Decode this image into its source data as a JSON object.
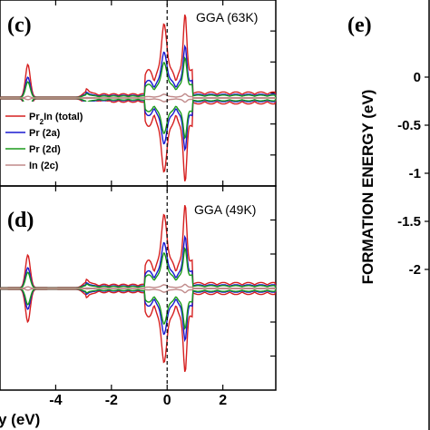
{
  "chart_data": [
    {
      "type": "line",
      "panel_label": "(c)",
      "annotation": "GGA (63K)",
      "xlim": [
        -6.0,
        3.9
      ],
      "x_ticks": [
        -4,
        -2,
        0,
        2
      ],
      "legend": {
        "placement": "left",
        "entries": [
          {
            "name": "Pr",
            "sub": "2",
            "rest": "In (total)",
            "color": "#d62020"
          },
          {
            "name": "Pr (2a)",
            "sub": "",
            "rest": "",
            "color": "#1a1ad0"
          },
          {
            "name": "Pr (2d)",
            "sub": "",
            "rest": "",
            "color": "#1b9a1b"
          },
          {
            "name": "In (2c)",
            "sub": "",
            "rest": "",
            "color": "#c08a8a"
          }
        ]
      },
      "series": [
        {
          "color": "#d62020",
          "amp": 1.0
        },
        {
          "color": "#1a1ad0",
          "amp": 0.62
        },
        {
          "color": "#1b9a1b",
          "amp": 0.48
        },
        {
          "color": "#c08a8a",
          "amp": 0.05
        }
      ]
    },
    {
      "type": "line",
      "panel_label": "(d)",
      "annotation": "GGA (49K)",
      "xlim": [
        -6.0,
        3.9
      ],
      "x_ticks": [
        -4,
        -2,
        0,
        2
      ],
      "xlabel": "y (eV)",
      "series": [
        {
          "color": "#d62020",
          "amp": 1.0
        },
        {
          "color": "#1a1ad0",
          "amp": 0.62
        },
        {
          "color": "#1b9a1b",
          "amp": 0.48
        },
        {
          "color": "#c08a8a",
          "amp": 0.05
        }
      ]
    },
    {
      "type": "line",
      "panel_label": "(e)",
      "ylabel": "FORMATION ENERGY (eV)",
      "ylim": [
        -2.4,
        0.4
      ],
      "y_ticks": [
        {
          "value": 0,
          "label": "0"
        },
        {
          "value": -0.5,
          "label": "-0.5"
        },
        {
          "value": -1,
          "label": "-1"
        },
        {
          "value": -1.5,
          "label": "-1.5"
        },
        {
          "value": -2,
          "label": "-2"
        }
      ]
    }
  ]
}
